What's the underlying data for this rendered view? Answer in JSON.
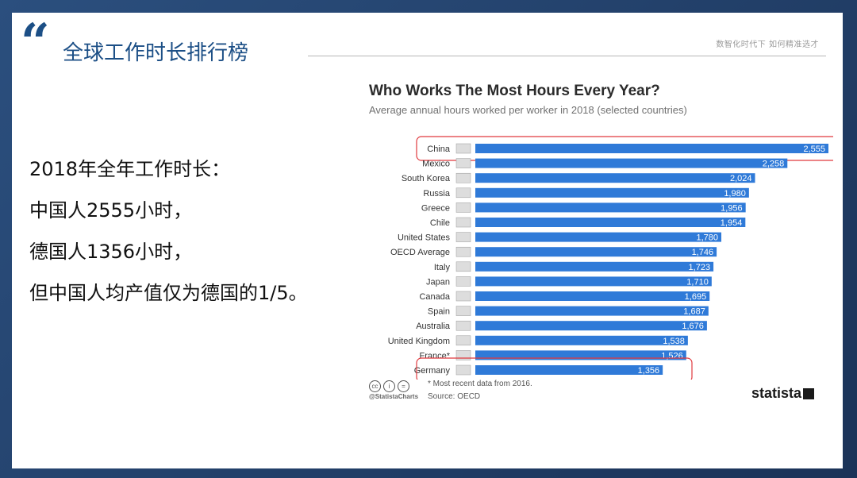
{
  "header": {
    "quote_mark": "“",
    "title": "全球工作时长排行榜",
    "tagline": "数智化时代下 如何精准选才"
  },
  "body_lines": [
    "2018年全年工作时长：",
    "中国人2555小时，",
    "德国人1356小时，",
    "但中国人均产值仅为德国的1/5。"
  ],
  "colors": {
    "accent": "#1c4f86",
    "bar": "#2f7ad8",
    "highlight": "#e0393e"
  },
  "chart_data": {
    "type": "bar",
    "orientation": "horizontal",
    "title": "Who Works The Most Hours Every Year?",
    "subtitle": "Average annual hours worked per worker in 2018 (selected countries)",
    "categories": [
      "China",
      "Mexico",
      "South Korea",
      "Russia",
      "Greece",
      "Chile",
      "United States",
      "OECD Average",
      "Italy",
      "Japan",
      "Canada",
      "Spain",
      "Australia",
      "United Kingdom",
      "France*",
      "Germany"
    ],
    "values": [
      2555,
      2258,
      2024,
      1980,
      1956,
      1954,
      1780,
      1746,
      1723,
      1710,
      1695,
      1687,
      1676,
      1538,
      1526,
      1356
    ],
    "value_labels": [
      "2,555",
      "2,258",
      "2,024",
      "1,980",
      "1,956",
      "1,954",
      "1,780",
      "1,746",
      "1,723",
      "1,710",
      "1,695",
      "1,687",
      "1,676",
      "1,538",
      "1,526",
      "1,356"
    ],
    "flag_icons": [
      "china-flag-icon",
      "mexico-flag-icon",
      "south-korea-flag-icon",
      "russia-flag-icon",
      "greece-flag-icon",
      "chile-flag-icon",
      "united-states-flag-icon",
      "oecd-icon",
      "italy-flag-icon",
      "japan-flag-icon",
      "canada-flag-icon",
      "spain-flag-icon",
      "australia-flag-icon",
      "united-kingdom-flag-icon",
      "france-flag-icon",
      "germany-flag-icon"
    ],
    "highlighted": [
      "China",
      "Germany"
    ],
    "xlim": [
      0,
      2555
    ],
    "grid": false,
    "legend": "none",
    "footnote": "* Most recent data from 2016.",
    "source": "Source: OECD",
    "handle": "@StatistaCharts",
    "brand": "statista"
  }
}
